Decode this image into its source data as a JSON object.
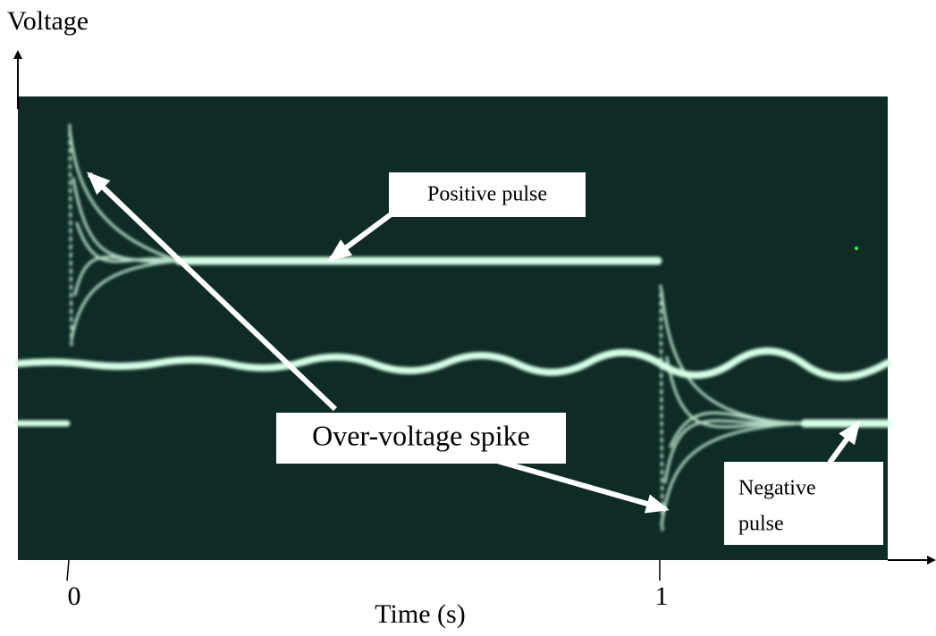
{
  "axes": {
    "y_label": "Voltage",
    "x_label": "Time (s)",
    "x_ticks": [
      "0",
      "1"
    ]
  },
  "annotations": {
    "positive": "Positive pulse",
    "spike": "Over-voltage spike",
    "negative": [
      "Negative",
      "pulse"
    ]
  }
}
